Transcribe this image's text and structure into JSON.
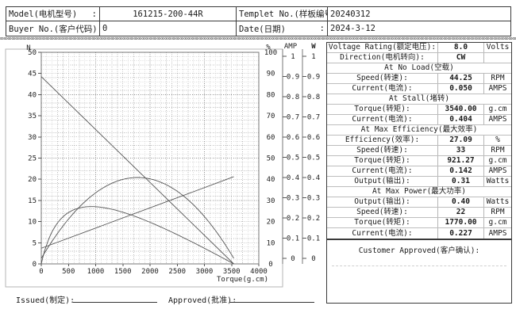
{
  "header": {
    "rows": [
      {
        "label1": "Model(电机型号)",
        "colon1": ":",
        "value1": "161215-200-44R",
        "label2": "Templet No.(样板编号)",
        "colon2": ":",
        "value2": "20240312"
      },
      {
        "label1": "Buyer No.(客户代码)",
        "colon1": ":",
        "value1": "0",
        "label2": "Date(日期)",
        "colon2": ":",
        "value2": "2024-3-12"
      }
    ]
  },
  "separator_char": "∞",
  "chart_data": {
    "type": "line",
    "xlabel": "Torque(g.cm)",
    "x_axis": {
      "min": 0,
      "max": 4000,
      "tick_step": 500,
      "grid_step": 100
    },
    "left_axis": {
      "header": "N",
      "min": 0,
      "max": 50,
      "tick_step": 5,
      "grid_step": 1
    },
    "percent_axis": {
      "header": "%",
      "min": 0,
      "max": 100,
      "tick_step": 10
    },
    "current_axis": {
      "header": "AMP",
      "min": 0,
      "max": 1,
      "tick_step": 0.1
    },
    "power_axis": {
      "header": "W",
      "min": 0,
      "max": 1,
      "tick_step": 0.1
    },
    "params": {
      "voltage_v": 8.0,
      "no_load_speed_rpm": 44.25,
      "no_load_current_a": 0.05,
      "stall_torque_gcm": 3540.0,
      "stall_current_a": 0.404,
      "max_power_w": 0.4,
      "max_power_torque_gcm": 1770.0,
      "max_eff_pct": 27.09,
      "max_eff_torque_gcm": 921.27
    },
    "series": [
      {
        "name": "speed",
        "axis": "N",
        "x": [
          0,
          3540
        ],
        "y": [
          44.25,
          0
        ]
      },
      {
        "name": "current",
        "axis": "AMP",
        "x": [
          0,
          3540
        ],
        "y": [
          0.05,
          0.404
        ]
      },
      {
        "name": "power",
        "axis": "W",
        "shape": "parabola",
        "x_peak": 1770,
        "y_peak": 0.4,
        "x_zero": [
          0,
          3540
        ]
      },
      {
        "name": "efficiency",
        "axis": "%",
        "shape": "peaked",
        "x_peak": 921.27,
        "y_peak": 27.09,
        "x_zero": [
          0,
          3540
        ]
      }
    ]
  },
  "spec_table": {
    "rows": [
      {
        "type": "data",
        "label": "Voltage Rating(额定电压):",
        "value": "8.0",
        "unit": "Volts"
      },
      {
        "type": "data",
        "label": "Direction(电机转向):",
        "value": "CW",
        "unit": ""
      },
      {
        "type": "section",
        "label": "At No Load(空载)"
      },
      {
        "type": "data",
        "label": "Speed(转速):",
        "value": "44.25",
        "unit": "RPM"
      },
      {
        "type": "data",
        "label": "Current(电流):",
        "value": "0.050",
        "unit": "AMPS"
      },
      {
        "type": "section",
        "label": "At Stall(堵转)"
      },
      {
        "type": "data",
        "label": "Torque(转矩):",
        "value": "3540.00",
        "unit": "g.cm"
      },
      {
        "type": "data",
        "label": "Current(电流):",
        "value": "0.404",
        "unit": "AMPS"
      },
      {
        "type": "section",
        "label": "At Max Efficiency(最大效率)"
      },
      {
        "type": "data",
        "label": "Efficiency(效率):",
        "value": "27.09",
        "unit": "%"
      },
      {
        "type": "data",
        "label": "Speed(转速):",
        "value": "33",
        "unit": "RPM"
      },
      {
        "type": "data",
        "label": "Torque(转矩):",
        "value": "921.27",
        "unit": "g.cm"
      },
      {
        "type": "data",
        "label": "Current(电流):",
        "value": "0.142",
        "unit": "AMPS"
      },
      {
        "type": "data",
        "label": "Output(输出):",
        "value": "0.31",
        "unit": "Watts"
      },
      {
        "type": "section",
        "label": "At Max Power(最大功率)"
      },
      {
        "type": "data",
        "label": "Output(输出):",
        "value": "0.40",
        "unit": "Watts"
      },
      {
        "type": "data",
        "label": "Speed(转速):",
        "value": "22",
        "unit": "RPM"
      },
      {
        "type": "data",
        "label": "Torque(转矩):",
        "value": "1770.00",
        "unit": "g.cm"
      },
      {
        "type": "data",
        "label": "Current(电流):",
        "value": "0.227",
        "unit": "AMPS"
      }
    ]
  },
  "customer_box": {
    "label": "Customer Approved(客户确认):"
  },
  "footer": {
    "issued_label": "Issued(制定):",
    "approved_label": "Approved(批准):"
  }
}
